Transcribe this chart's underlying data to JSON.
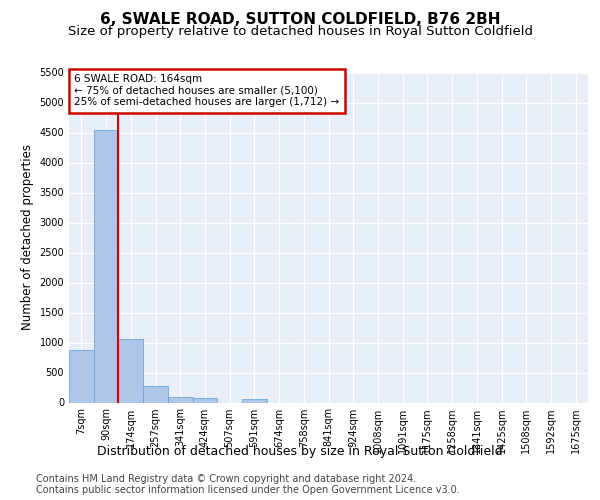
{
  "title": "6, SWALE ROAD, SUTTON COLDFIELD, B76 2BH",
  "subtitle": "Size of property relative to detached houses in Royal Sutton Coldfield",
  "xlabel": "Distribution of detached houses by size in Royal Sutton Coldfield",
  "ylabel": "Number of detached properties",
  "bar_values": [
    880,
    4540,
    1060,
    280,
    90,
    80,
    0,
    55,
    0,
    0,
    0,
    0,
    0,
    0,
    0,
    0,
    0,
    0,
    0,
    0,
    0
  ],
  "bar_labels": [
    "7sqm",
    "90sqm",
    "174sqm",
    "257sqm",
    "341sqm",
    "424sqm",
    "507sqm",
    "591sqm",
    "674sqm",
    "758sqm",
    "841sqm",
    "924sqm",
    "1008sqm",
    "1091sqm",
    "1175sqm",
    "1258sqm",
    "1341sqm",
    "1425sqm",
    "1508sqm",
    "1592sqm",
    "1675sqm"
  ],
  "bar_color": "#aec6e8",
  "bar_edge_color": "#5a9fd4",
  "annotation_line1": "6 SWALE ROAD: 164sqm",
  "annotation_line2": "← 75% of detached houses are smaller (5,100)",
  "annotation_line3": "25% of semi-detached houses are larger (1,712) →",
  "annotation_box_color": "#ffffff",
  "annotation_box_edge": "#cc0000",
  "vline_x": 1.5,
  "vline_color": "#cc0000",
  "ylim_max": 5500,
  "yticks": [
    0,
    500,
    1000,
    1500,
    2000,
    2500,
    3000,
    3500,
    4000,
    4500,
    5000,
    5500
  ],
  "bg_color": "#e8eef7",
  "footer_line1": "Contains HM Land Registry data © Crown copyright and database right 2024.",
  "footer_line2": "Contains public sector information licensed under the Open Government Licence v3.0.",
  "title_fontsize": 11,
  "subtitle_fontsize": 9.5,
  "xlabel_fontsize": 9,
  "ylabel_fontsize": 8.5,
  "tick_fontsize": 7,
  "annot_fontsize": 7.5
}
